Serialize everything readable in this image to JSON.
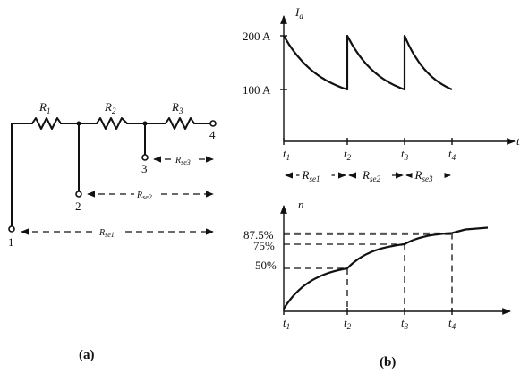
{
  "circuit": {
    "resistors": [
      "R",
      "R",
      "R"
    ],
    "resistor_subscripts": [
      "1",
      "2",
      "3"
    ],
    "terminals": [
      "1",
      "2",
      "3",
      "4"
    ],
    "spans": [
      {
        "label": "R",
        "subscript": "se1"
      },
      {
        "label": "R",
        "subscript": "se2"
      },
      {
        "label": "R",
        "subscript": "se3"
      }
    ],
    "caption": "(a)"
  },
  "current_plot": {
    "ylabel": "I",
    "ylabel_subscript": "a",
    "xlabel": "t",
    "y_ticks": [
      "200 A",
      "100 A"
    ],
    "x_ticks": [
      {
        "label": "t",
        "subscript": "1"
      },
      {
        "label": "t",
        "subscript": "2"
      },
      {
        "label": "t",
        "subscript": "3"
      },
      {
        "label": "t",
        "subscript": "4"
      }
    ],
    "intervals": [
      {
        "label": "R",
        "subscript": "se1"
      },
      {
        "label": "R",
        "subscript": "se2"
      },
      {
        "label": "R",
        "subscript": "se3"
      }
    ]
  },
  "speed_plot": {
    "ylabel": "n",
    "y_ticks": [
      "87.5%",
      "75%",
      "50%"
    ],
    "x_ticks": [
      {
        "label": "t",
        "subscript": "1"
      },
      {
        "label": "t",
        "subscript": "2"
      },
      {
        "label": "t",
        "subscript": "3"
      },
      {
        "label": "t",
        "subscript": "4"
      }
    ]
  },
  "caption_b": "(b)",
  "chart_data": [
    {
      "type": "line",
      "x_ticks": [
        "t1",
        "t2",
        "t3",
        "t4"
      ],
      "series": [
        {
          "x": [
            "t1",
            "t2",
            "t2",
            "t3",
            "t3",
            "t4"
          ],
          "values": [
            200,
            100,
            200,
            100,
            200,
            100
          ]
        }
      ],
      "ylabel": "Ia",
      "xlabel": "t",
      "ylim": [
        0,
        220
      ],
      "grid": false
    },
    {
      "type": "line",
      "x_ticks": [
        "t1",
        "t2",
        "t3",
        "t4"
      ],
      "series": [
        {
          "x": [
            "t1",
            "t2",
            "t3",
            "t4"
          ],
          "values": [
            0,
            50,
            75,
            87.5
          ]
        }
      ],
      "ylabel": "n",
      "xlabel": "",
      "y_ticks_percent": [
        50,
        75,
        87.5
      ],
      "grid": false
    }
  ]
}
